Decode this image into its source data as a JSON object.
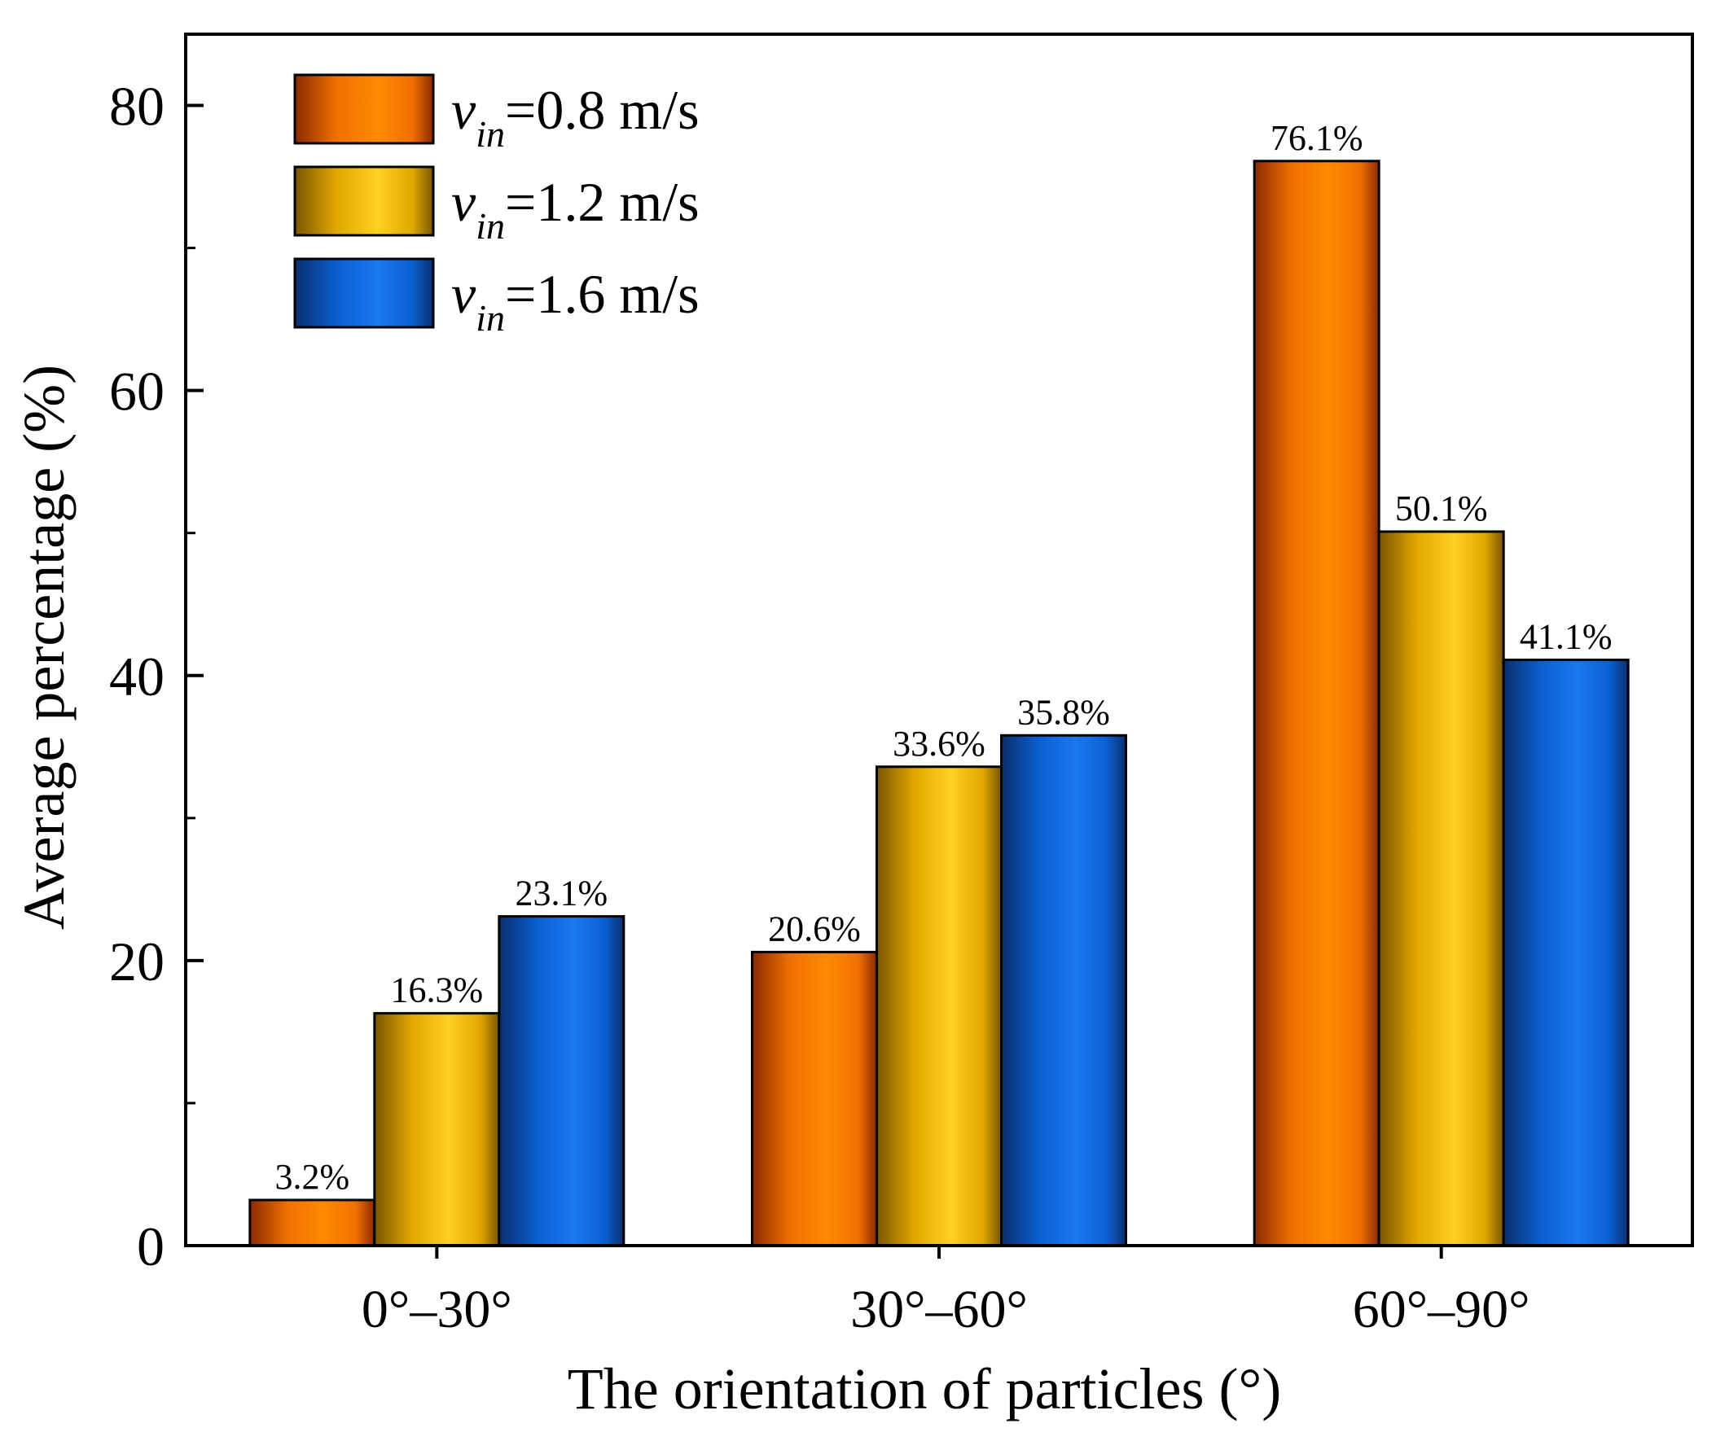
{
  "chart_data": {
    "type": "bar",
    "title": "",
    "xlabel": "The orientation of particles (°)",
    "ylabel": "Average percentage (%)",
    "categories": [
      "0°–30°",
      "30°–60°",
      "60°–90°"
    ],
    "ylim": [
      0,
      85
    ],
    "yticks": [
      0,
      20,
      40,
      60,
      80
    ],
    "grid": false,
    "legend_position": "top-left",
    "series": [
      {
        "name": "v_in=0.8 m/s",
        "legend_symbol": "v",
        "legend_subscript": "in",
        "legend_rest": "=0.8 m/s",
        "values": [
          3.2,
          20.6,
          76.1
        ],
        "labels": [
          "3.2%",
          "20.6%",
          "76.1%"
        ],
        "colors": {
          "dark": "#8a2a00",
          "mid": "#f07000",
          "light": "#ff8a00"
        }
      },
      {
        "name": "v_in=1.2 m/s",
        "legend_symbol": "v",
        "legend_subscript": "in",
        "legend_rest": "=1.2 m/s",
        "values": [
          16.3,
          33.6,
          50.1
        ],
        "labels": [
          "16.3%",
          "33.6%",
          "50.1%"
        ],
        "colors": {
          "dark": "#7a5500",
          "mid": "#e0a800",
          "light": "#ffd020"
        }
      },
      {
        "name": "v_in=1.6 m/s",
        "legend_symbol": "v",
        "legend_subscript": "in",
        "legend_rest": "=1.6 m/s",
        "values": [
          23.1,
          35.8,
          41.1
        ],
        "labels": [
          "23.1%",
          "35.8%",
          "41.1%"
        ],
        "colors": {
          "dark": "#0a2e6e",
          "mid": "#0a5fd0",
          "light": "#1a78f0"
        }
      }
    ]
  }
}
